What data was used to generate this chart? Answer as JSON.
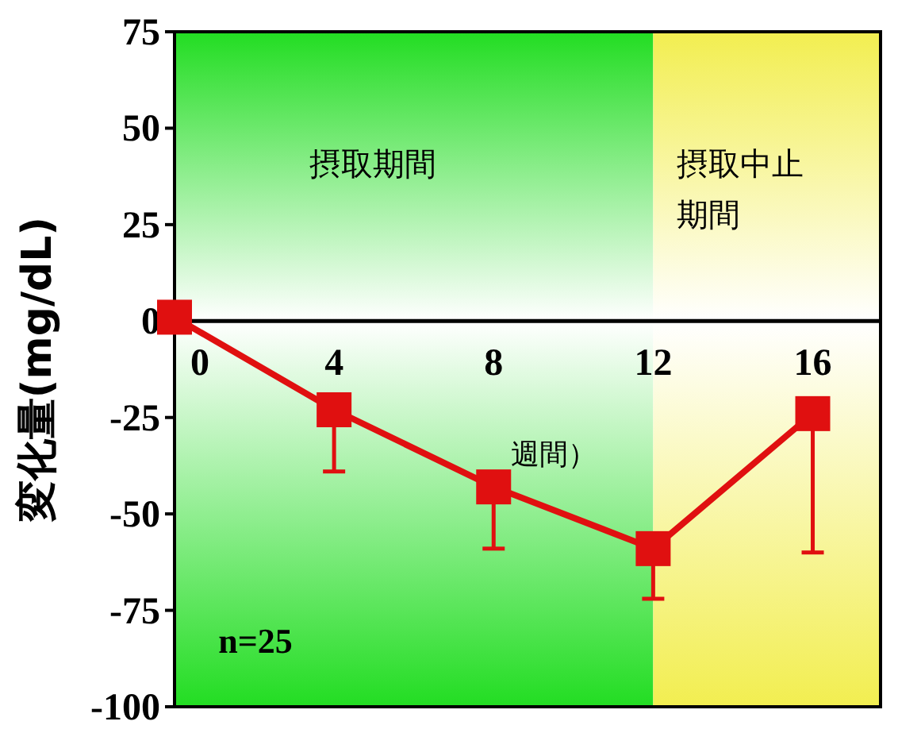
{
  "chart_data": {
    "type": "line",
    "ylabel": "変化量(mg/dL)",
    "xlabel": "週間）",
    "x": [
      0,
      4,
      8,
      12,
      16
    ],
    "series": [
      {
        "color": "#e01010",
        "values": [
          1,
          -23,
          -43,
          -59,
          -24
        ],
        "errors": [
          null,
          [
            -39,
            -23
          ],
          [
            -59,
            -43
          ],
          [
            -72,
            -59
          ],
          [
            -60,
            -24
          ]
        ]
      }
    ],
    "marker": "square",
    "line_style": "solid",
    "xlim": [
      0,
      17.7
    ],
    "xticks": [
      0,
      4,
      8,
      12,
      16
    ],
    "ylim": [
      -100,
      75
    ],
    "yticks": [
      -100,
      -75,
      -50,
      -25,
      0,
      25,
      50,
      75
    ],
    "bands": [
      {
        "axis": "x",
        "from": 0,
        "to": 12,
        "label": "摂取期間",
        "color": "#22dd22"
      },
      {
        "axis": "x",
        "from": 12,
        "to": 17.7,
        "label": "摂取中止期間",
        "color": "#f2ee50"
      }
    ],
    "annotations": [
      "n=25"
    ],
    "grid": false
  }
}
